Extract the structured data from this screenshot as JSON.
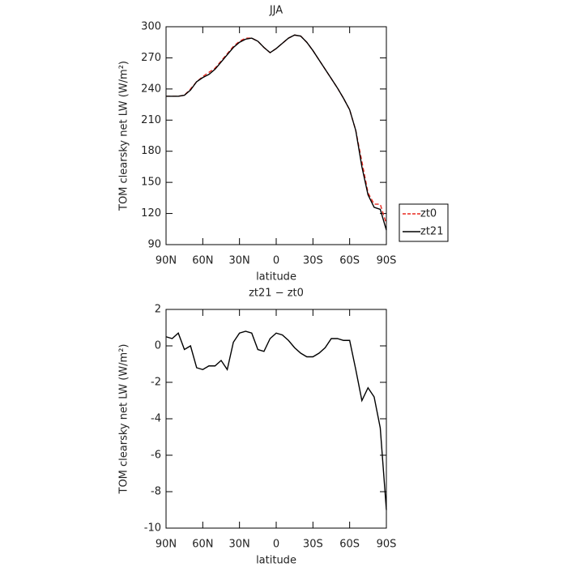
{
  "chart_data": [
    {
      "type": "line",
      "title": "JJA",
      "xlabel": "latitude",
      "ylabel": "TOM clearsky net LW (W/m²)",
      "x": [
        90,
        85,
        80,
        75,
        70,
        65,
        60,
        55,
        50,
        45,
        40,
        35,
        30,
        25,
        20,
        15,
        10,
        5,
        0,
        -5,
        -10,
        -15,
        -20,
        -25,
        -30,
        -35,
        -40,
        -45,
        -50,
        -55,
        -60,
        -65,
        -70,
        -75,
        -80,
        -85,
        -90
      ],
      "series": [
        {
          "name": "zt0",
          "color": "#e8291f",
          "dash": true,
          "values": [
            233,
            233,
            233,
            234,
            240,
            247,
            252,
            256,
            260,
            267,
            274,
            281,
            286,
            289,
            289,
            286,
            280,
            275,
            279,
            284,
            289,
            292,
            291,
            285,
            277,
            268,
            259,
            250,
            241,
            231,
            220,
            200,
            170,
            140,
            129,
            129,
            110
          ]
        },
        {
          "name": "zt21",
          "color": "#000000",
          "dash": false,
          "values": [
            233,
            233,
            233,
            234,
            239,
            247,
            251,
            254,
            259,
            266,
            273,
            280,
            285,
            288,
            289,
            286,
            280,
            275,
            279,
            284,
            289,
            292,
            291,
            285,
            277,
            268,
            259,
            250,
            241,
            231,
            220,
            200,
            165,
            138,
            126,
            124,
            104
          ]
        }
      ],
      "xlim": [
        90,
        -90
      ],
      "xticks": [
        {
          "value": 90,
          "label": "90N"
        },
        {
          "value": 60,
          "label": "60N"
        },
        {
          "value": 30,
          "label": "30N"
        },
        0,
        {
          "value": -30,
          "label": "30S"
        },
        {
          "value": -60,
          "label": "60S"
        },
        {
          "value": -90,
          "label": "90S"
        }
      ],
      "ylim": [
        90,
        300
      ],
      "yticks": [
        90,
        120,
        150,
        180,
        210,
        240,
        270,
        300
      ],
      "legend": "right"
    },
    {
      "type": "line",
      "title": "zt21 − zt0",
      "xlabel": "latitude",
      "ylabel": "TOM clearsky net LW (W/m²)",
      "x": [
        90,
        85,
        80,
        75,
        70,
        65,
        60,
        55,
        50,
        45,
        40,
        35,
        30,
        25,
        20,
        15,
        10,
        5,
        0,
        -5,
        -10,
        -15,
        -20,
        -25,
        -30,
        -35,
        -40,
        -45,
        -50,
        -55,
        -60,
        -65,
        -70,
        -75,
        -80,
        -85,
        -90
      ],
      "series": [
        {
          "color": "#000000",
          "dash": false,
          "values": [
            0.5,
            0.4,
            0.7,
            -0.2,
            0.0,
            -1.2,
            -1.3,
            -1.1,
            -1.1,
            -0.8,
            -1.3,
            0.2,
            0.7,
            0.8,
            0.7,
            -0.2,
            -0.3,
            0.4,
            0.7,
            0.6,
            0.3,
            -0.1,
            -0.4,
            -0.6,
            -0.6,
            -0.4,
            -0.1,
            0.4,
            0.4,
            0.3,
            0.3,
            -1.3,
            -3.0,
            -2.3,
            -2.8,
            -4.5,
            -9.0
          ]
        }
      ],
      "xlim": [
        90,
        -90
      ],
      "xticks": [
        {
          "value": 90,
          "label": "90N"
        },
        {
          "value": 60,
          "label": "60N"
        },
        {
          "value": 30,
          "label": "30N"
        },
        0,
        {
          "value": -30,
          "label": "30S"
        },
        {
          "value": -60,
          "label": "60S"
        },
        {
          "value": -90,
          "label": "90S"
        }
      ],
      "ylim": [
        -10,
        2
      ],
      "yticks": [
        -10,
        -8,
        -6,
        -4,
        -2,
        0,
        2
      ]
    }
  ]
}
